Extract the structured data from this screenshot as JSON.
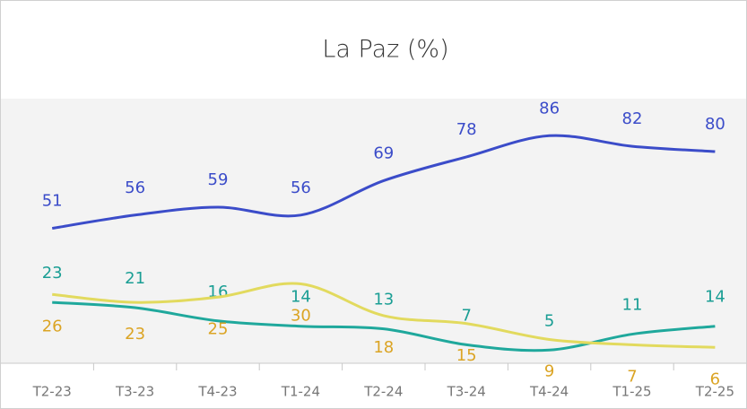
{
  "chart_data": {
    "type": "line",
    "title": "La Paz (%)",
    "categories": [
      "T2-23",
      "T3-23",
      "T4-23",
      "T1-24",
      "T2-24",
      "T3-24",
      "T4-24",
      "T1-25",
      "T2-25"
    ],
    "series": [
      {
        "color": "#3b4cc9",
        "label_color": "#3b4cc9",
        "values": [
          51,
          56,
          59,
          56,
          69,
          78,
          86,
          82,
          80
        ]
      },
      {
        "color": "#1fa89c",
        "label_color": "#1a9e94",
        "values": [
          23,
          21,
          16,
          14,
          13,
          7,
          5,
          11,
          14
        ]
      },
      {
        "color": "#e2da5e",
        "label_color": "#dba424",
        "values": [
          26,
          23,
          25,
          30,
          18,
          15,
          9,
          7,
          6
        ]
      }
    ],
    "ylim": [
      0,
      100
    ]
  }
}
